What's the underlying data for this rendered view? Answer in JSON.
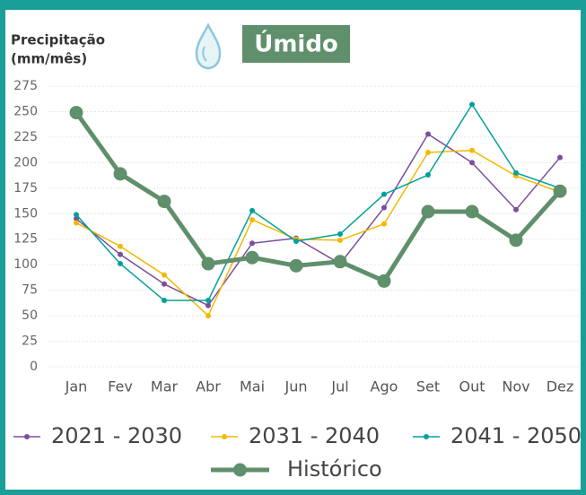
{
  "chart_data": {
    "type": "line",
    "title": "Úmido",
    "y_label": [
      "Precipitação",
      "(mm/mês)"
    ],
    "categories": [
      "Jan",
      "Fev",
      "Mar",
      "Abr",
      "Mai",
      "Jun",
      "Jul",
      "Ago",
      "Set",
      "Out",
      "Nov",
      "Dez"
    ],
    "ylim": [
      0,
      275
    ],
    "yticks": [
      0,
      25,
      50,
      75,
      100,
      125,
      150,
      175,
      200,
      225,
      250,
      275
    ],
    "grid": true,
    "series": [
      {
        "name": "2021 - 2030",
        "color": "#7b4f9d",
        "values": [
          145,
          110,
          81,
          60,
          121,
          126,
          101,
          156,
          228,
          200,
          154,
          205
        ]
      },
      {
        "name": "2031 - 2040",
        "color": "#f5b800",
        "values": [
          141,
          118,
          90,
          50,
          144,
          125,
          124,
          140,
          210,
          212,
          187,
          171
        ]
      },
      {
        "name": "2041 - 2050",
        "color": "#00a19a",
        "values": [
          149,
          101,
          65,
          65,
          153,
          123,
          130,
          169,
          188,
          257,
          190,
          175
        ]
      },
      {
        "name": "Histórico",
        "color": "#5f8f6b",
        "values": [
          249,
          189,
          162,
          101,
          107,
          99,
          103,
          84,
          152,
          152,
          124,
          172
        ]
      }
    ]
  }
}
